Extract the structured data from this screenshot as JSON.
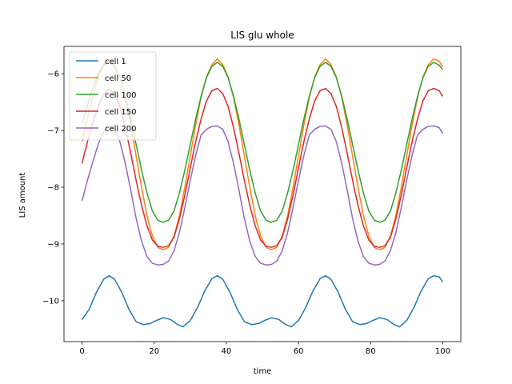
{
  "chart_data": {
    "type": "line",
    "title": "LIS glu whole",
    "xlabel": "time",
    "ylabel": "LIS amount",
    "xlim": [
      -5,
      105
    ],
    "ylim": [
      -10.72,
      -5.52
    ],
    "xticks": [
      0,
      20,
      40,
      60,
      80,
      100
    ],
    "yticks": [
      -10,
      -9,
      -8,
      -7,
      -6
    ],
    "xtick_labels": [
      "0",
      "20",
      "40",
      "60",
      "80",
      "100"
    ],
    "ytick_labels": [
      "−10",
      "−9",
      "−8",
      "−7",
      "−6"
    ],
    "grid": false,
    "legend_position": "top-left",
    "series": [
      {
        "name": "cell 1",
        "color": "#1f77b4",
        "x": [
          0,
          2,
          4,
          6,
          7.5,
          9,
          11,
          13,
          15,
          17,
          19,
          20.5,
          22.5,
          24.5,
          26.5,
          28,
          30,
          32,
          34,
          36,
          37.5,
          39,
          41,
          43,
          45,
          47,
          49,
          50.5,
          52.5,
          54.5,
          56.5,
          58,
          60,
          62,
          64,
          66,
          67.5,
          69,
          71,
          73,
          75,
          77,
          79,
          80.5,
          82.5,
          84.5,
          86.5,
          88,
          90,
          92,
          94,
          96,
          97.5,
          99,
          100
        ],
        "y": [
          -10.33,
          -10.15,
          -9.85,
          -9.62,
          -9.56,
          -9.62,
          -9.85,
          -10.15,
          -10.37,
          -10.42,
          -10.4,
          -10.35,
          -10.3,
          -10.33,
          -10.42,
          -10.46,
          -10.35,
          -10.12,
          -9.83,
          -9.61,
          -9.56,
          -9.62,
          -9.85,
          -10.15,
          -10.37,
          -10.42,
          -10.4,
          -10.35,
          -10.3,
          -10.33,
          -10.42,
          -10.46,
          -10.35,
          -10.12,
          -9.83,
          -9.61,
          -9.56,
          -9.62,
          -9.85,
          -10.15,
          -10.37,
          -10.42,
          -10.4,
          -10.35,
          -10.3,
          -10.33,
          -10.42,
          -10.46,
          -10.35,
          -10.12,
          -9.83,
          -9.61,
          -9.56,
          -9.58,
          -9.67
        ]
      },
      {
        "name": "cell 50",
        "color": "#ff7f0e",
        "x": [
          0,
          1.5,
          3,
          4.5,
          6,
          7.5,
          9,
          10.5,
          12,
          13.5,
          15,
          16.5,
          18,
          19.5,
          21,
          22.5,
          24,
          25.5,
          27,
          28.5,
          30,
          31.5,
          33,
          34.5,
          36,
          37.5,
          39,
          40.5,
          42,
          43.5,
          45,
          46.5,
          48,
          49.5,
          51,
          52.5,
          54,
          55.5,
          57,
          58.5,
          60,
          61.5,
          63,
          64.5,
          66,
          67.5,
          69,
          70.5,
          72,
          73.5,
          75,
          76.5,
          78,
          79.5,
          81,
          82.5,
          84,
          85.5,
          87,
          88.5,
          90,
          91.5,
          93,
          94.5,
          96,
          97.5,
          99,
          100
        ],
        "y": [
          -7.2,
          -6.78,
          -6.4,
          -6.06,
          -5.84,
          -5.74,
          -5.84,
          -6.06,
          -6.42,
          -6.9,
          -7.45,
          -8.0,
          -8.5,
          -8.86,
          -9.06,
          -9.1,
          -9.06,
          -8.86,
          -8.5,
          -8.0,
          -7.45,
          -6.9,
          -6.42,
          -6.06,
          -5.84,
          -5.74,
          -5.84,
          -6.06,
          -6.42,
          -6.9,
          -7.45,
          -8.0,
          -8.5,
          -8.86,
          -9.06,
          -9.1,
          -9.06,
          -8.86,
          -8.5,
          -8.0,
          -7.45,
          -6.9,
          -6.42,
          -6.06,
          -5.84,
          -5.74,
          -5.84,
          -6.06,
          -6.42,
          -6.9,
          -7.45,
          -8.0,
          -8.5,
          -8.86,
          -9.06,
          -9.1,
          -9.06,
          -8.86,
          -8.5,
          -8.0,
          -7.45,
          -6.9,
          -6.42,
          -6.06,
          -5.84,
          -5.74,
          -5.78,
          -5.88
        ]
      },
      {
        "name": "cell 100",
        "color": "#2ca02c",
        "x": [
          0,
          1.5,
          3,
          4.5,
          6,
          7.5,
          9,
          10.5,
          12,
          13.5,
          15,
          16.5,
          18,
          19.5,
          21,
          22.5,
          24,
          25.5,
          27,
          28.5,
          30,
          31.5,
          33,
          34.5,
          36,
          37.5,
          39,
          40.5,
          42,
          43.5,
          45,
          46.5,
          48,
          49.5,
          51,
          52.5,
          54,
          55.5,
          57,
          58.5,
          60,
          61.5,
          63,
          64.5,
          66,
          67.5,
          69,
          70.5,
          72,
          73.5,
          75,
          76.5,
          78,
          79.5,
          81,
          82.5,
          84,
          85.5,
          87,
          88.5,
          90,
          91.5,
          93,
          94.5,
          96,
          97.5,
          99,
          100
        ],
        "y": [
          -6.88,
          -6.55,
          -6.25,
          -6.0,
          -5.85,
          -5.8,
          -5.87,
          -6.07,
          -6.4,
          -6.8,
          -7.25,
          -7.7,
          -8.1,
          -8.42,
          -8.58,
          -8.62,
          -8.58,
          -8.42,
          -8.1,
          -7.7,
          -7.25,
          -6.8,
          -6.4,
          -6.07,
          -5.87,
          -5.8,
          -5.87,
          -6.07,
          -6.4,
          -6.8,
          -7.25,
          -7.7,
          -8.1,
          -8.42,
          -8.58,
          -8.62,
          -8.58,
          -8.42,
          -8.1,
          -7.7,
          -7.25,
          -6.8,
          -6.4,
          -6.07,
          -5.87,
          -5.8,
          -5.87,
          -6.07,
          -6.4,
          -6.8,
          -7.25,
          -7.7,
          -8.1,
          -8.42,
          -8.58,
          -8.62,
          -8.58,
          -8.42,
          -8.1,
          -7.7,
          -7.25,
          -6.8,
          -6.4,
          -6.07,
          -5.87,
          -5.8,
          -5.85,
          -5.93
        ]
      },
      {
        "name": "cell 150",
        "color": "#d62728",
        "x": [
          0,
          1.5,
          3,
          4.5,
          6,
          7.5,
          9,
          10.5,
          12,
          13.5,
          15,
          16.5,
          18,
          19.5,
          21,
          22.5,
          24,
          25.5,
          27,
          28.5,
          30,
          31.5,
          33,
          34.5,
          36,
          37.5,
          39,
          40.5,
          42,
          43.5,
          45,
          46.5,
          48,
          49.5,
          51,
          52.5,
          54,
          55.5,
          57,
          58.5,
          60,
          61.5,
          63,
          64.5,
          66,
          67.5,
          69,
          70.5,
          72,
          73.5,
          75,
          76.5,
          78,
          79.5,
          81,
          82.5,
          84,
          85.5,
          87,
          88.5,
          90,
          91.5,
          93,
          94.5,
          96,
          97.5,
          99,
          100
        ],
        "y": [
          -7.58,
          -7.2,
          -6.86,
          -6.57,
          -6.37,
          -6.27,
          -6.35,
          -6.58,
          -6.95,
          -7.4,
          -7.88,
          -8.32,
          -8.68,
          -8.93,
          -9.04,
          -9.06,
          -9.03,
          -8.88,
          -8.56,
          -8.14,
          -7.66,
          -7.2,
          -6.8,
          -6.48,
          -6.3,
          -6.26,
          -6.35,
          -6.58,
          -6.95,
          -7.4,
          -7.88,
          -8.32,
          -8.68,
          -8.93,
          -9.04,
          -9.06,
          -9.03,
          -8.88,
          -8.56,
          -8.14,
          -7.66,
          -7.2,
          -6.8,
          -6.48,
          -6.3,
          -6.26,
          -6.35,
          -6.58,
          -6.95,
          -7.4,
          -7.88,
          -8.32,
          -8.68,
          -8.93,
          -9.04,
          -9.06,
          -9.03,
          -8.88,
          -8.56,
          -8.14,
          -7.66,
          -7.2,
          -6.8,
          -6.48,
          -6.3,
          -6.26,
          -6.3,
          -6.4
        ]
      },
      {
        "name": "cell 200",
        "color": "#9467bd",
        "x": [
          0,
          1.5,
          3,
          4.5,
          6,
          7.5,
          9,
          10.5,
          12,
          13.5,
          15,
          16.5,
          18,
          19.5,
          21,
          22.5,
          24,
          25.5,
          27,
          28.5,
          30,
          31.5,
          33,
          34.5,
          36,
          37.5,
          39,
          40.5,
          42,
          43.5,
          45,
          46.5,
          48,
          49.5,
          51,
          52.5,
          54,
          55.5,
          57,
          58.5,
          60,
          61.5,
          63,
          64.5,
          66,
          67.5,
          69,
          70.5,
          72,
          73.5,
          75,
          76.5,
          78,
          79.5,
          81,
          82.5,
          84,
          85.5,
          87,
          88.5,
          90,
          91.5,
          93,
          94.5,
          96,
          97.5,
          99,
          100
        ],
        "y": [
          -8.24,
          -7.88,
          -7.55,
          -7.24,
          -7.02,
          -6.92,
          -6.98,
          -7.2,
          -7.58,
          -8.05,
          -8.55,
          -8.95,
          -9.22,
          -9.34,
          -9.37,
          -9.36,
          -9.3,
          -9.12,
          -8.8,
          -8.36,
          -7.88,
          -7.44,
          -7.08,
          -6.98,
          -6.93,
          -6.92,
          -6.98,
          -7.2,
          -7.58,
          -8.05,
          -8.55,
          -8.95,
          -9.22,
          -9.34,
          -9.37,
          -9.36,
          -9.3,
          -9.12,
          -8.8,
          -8.36,
          -7.88,
          -7.44,
          -7.08,
          -6.98,
          -6.93,
          -6.92,
          -6.98,
          -7.2,
          -7.58,
          -8.05,
          -8.55,
          -8.95,
          -9.22,
          -9.34,
          -9.37,
          -9.36,
          -9.3,
          -9.12,
          -8.8,
          -8.36,
          -7.88,
          -7.44,
          -7.08,
          -6.98,
          -6.93,
          -6.92,
          -6.95,
          -7.06
        ]
      }
    ]
  }
}
